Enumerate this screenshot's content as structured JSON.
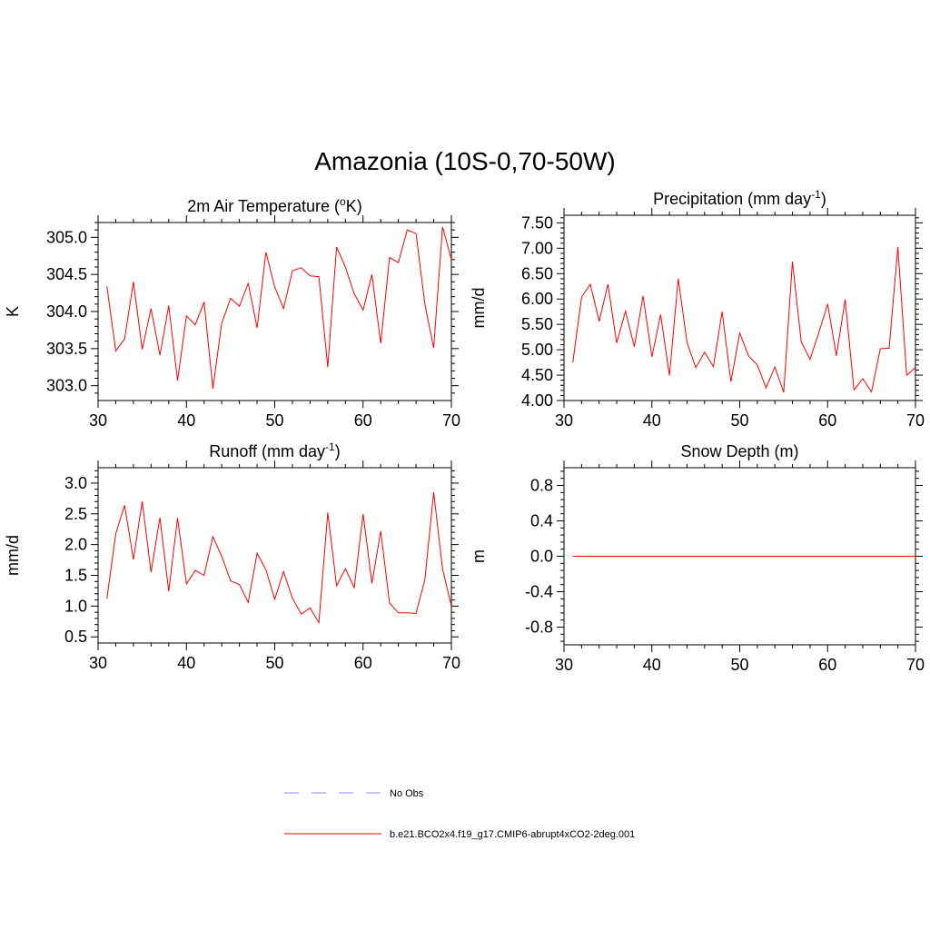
{
  "title": "Amazonia (10S-0,70-50W)",
  "legend": {
    "obs_label": "No Obs",
    "model_label": "b.e21.BCO2x4.f19_g17.CMIP6-abrupt4xCO2-2deg.001",
    "obs_color": "#8c8cff",
    "model_color": "#ff0000"
  },
  "chart_data": [
    {
      "type": "line",
      "title": "2m Air Temperature (",
      "title_sup": "o",
      "title_suffix": "K)",
      "ylabel": "K",
      "xlim": [
        30,
        70
      ],
      "ylim": [
        302.8,
        305.2
      ],
      "xticks": [
        30,
        40,
        50,
        60,
        70
      ],
      "yticks": [
        303.0,
        303.5,
        304.0,
        304.5,
        305.0
      ],
      "ytick_labels": [
        "303.0",
        "303.5",
        "304.0",
        "304.5",
        "305.0"
      ],
      "x": [
        31,
        32,
        33,
        34,
        35,
        36,
        37,
        38,
        39,
        40,
        41,
        42,
        43,
        44,
        45,
        46,
        47,
        48,
        49,
        50,
        51,
        52,
        53,
        54,
        55,
        56,
        57,
        58,
        59,
        60,
        61,
        62,
        63,
        64,
        65,
        66,
        67,
        68,
        69,
        70
      ],
      "series": [
        {
          "name": "b.e21.BCO2x4.f19_g17.CMIP6-abrupt4xCO2-2deg.001",
          "values": [
            304.34,
            303.47,
            303.63,
            304.4,
            303.49,
            304.04,
            303.41,
            304.08,
            303.07,
            303.94,
            303.82,
            304.13,
            302.96,
            303.84,
            304.18,
            304.07,
            304.38,
            303.78,
            304.8,
            304.33,
            304.04,
            304.55,
            304.59,
            304.48,
            304.47,
            303.25,
            304.87,
            304.6,
            304.24,
            304.02,
            304.5,
            303.57,
            304.73,
            304.66,
            305.1,
            305.05,
            304.1,
            303.51,
            305.14,
            304.7
          ]
        }
      ]
    },
    {
      "type": "line",
      "title": "Precipitation (mm day",
      "title_sup": "-1",
      "title_suffix": ")",
      "ylabel": "mm/d",
      "xlim": [
        30,
        70
      ],
      "ylim": [
        4.0,
        7.65
      ],
      "xticks": [
        30,
        40,
        50,
        60,
        70
      ],
      "yticks": [
        4.0,
        4.5,
        5.0,
        5.5,
        6.0,
        6.5,
        7.0,
        7.5
      ],
      "ytick_labels": [
        "4.00",
        "4.50",
        "5.00",
        "5.50",
        "6.00",
        "6.50",
        "7.00",
        "7.50"
      ],
      "x": [
        31,
        32,
        33,
        34,
        35,
        36,
        37,
        38,
        39,
        40,
        41,
        42,
        43,
        44,
        45,
        46,
        47,
        48,
        49,
        50,
        51,
        52,
        53,
        54,
        55,
        56,
        57,
        58,
        59,
        60,
        61,
        62,
        63,
        64,
        65,
        66,
        67,
        68,
        69,
        70
      ],
      "series": [
        {
          "name": "b.e21.BCO2x4.f19_g17.CMIP6-abrupt4xCO2-2deg.001",
          "values": [
            4.75,
            6.04,
            6.29,
            5.56,
            6.29,
            5.13,
            5.76,
            5.06,
            6.06,
            4.86,
            5.69,
            4.49,
            6.4,
            5.14,
            4.65,
            4.95,
            4.67,
            5.75,
            4.37,
            5.33,
            4.88,
            4.7,
            4.25,
            4.66,
            4.16,
            6.74,
            5.16,
            4.81,
            5.34,
            5.9,
            4.88,
            5.99,
            4.21,
            4.43,
            4.17,
            5.02,
            5.03,
            7.02,
            4.5,
            4.65
          ]
        }
      ]
    },
    {
      "type": "line",
      "title": "Runoff (mm day",
      "title_sup": "-1",
      "title_suffix": ")",
      "ylabel": "mm/d",
      "xlim": [
        30,
        70
      ],
      "ylim": [
        0.4,
        3.25
      ],
      "xticks": [
        30,
        40,
        50,
        60,
        70
      ],
      "yticks": [
        0.5,
        1.0,
        1.5,
        2.0,
        2.5,
        3.0
      ],
      "ytick_labels": [
        "0.5",
        "1.0",
        "1.5",
        "2.0",
        "2.5",
        "3.0"
      ],
      "x": [
        31,
        32,
        33,
        34,
        35,
        36,
        37,
        38,
        39,
        40,
        41,
        42,
        43,
        44,
        45,
        46,
        47,
        48,
        49,
        50,
        51,
        52,
        53,
        54,
        55,
        56,
        57,
        58,
        59,
        60,
        61,
        62,
        63,
        64,
        65,
        66,
        67,
        68,
        69,
        70
      ],
      "series": [
        {
          "name": "b.e21.BCO2x4.f19_g17.CMIP6-abrupt4xCO2-2deg.001",
          "values": [
            1.12,
            2.18,
            2.64,
            1.76,
            2.7,
            1.55,
            2.44,
            1.24,
            2.43,
            1.36,
            1.58,
            1.5,
            2.13,
            1.81,
            1.41,
            1.35,
            1.06,
            1.86,
            1.59,
            1.11,
            1.56,
            1.13,
            0.87,
            0.97,
            0.73,
            2.52,
            1.33,
            1.61,
            1.3,
            2.5,
            1.37,
            2.22,
            1.05,
            0.89,
            0.89,
            0.88,
            1.43,
            2.85,
            1.6,
            1.0
          ]
        }
      ]
    },
    {
      "type": "line",
      "title": "Snow Depth (m)",
      "title_sup": "",
      "title_suffix": "",
      "ylabel": "m",
      "xlim": [
        30,
        70
      ],
      "ylim": [
        -1.0,
        1.0
      ],
      "xticks": [
        30,
        40,
        50,
        60,
        70
      ],
      "yticks": [
        -0.8,
        -0.4,
        0.0,
        0.4,
        0.8
      ],
      "ytick_labels": [
        "-0.8",
        "-0.4",
        "0.0",
        "0.4",
        "0.8"
      ],
      "x": [
        31,
        70
      ],
      "series": [
        {
          "name": "b.e21.BCO2x4.f19_g17.CMIP6-abrupt4xCO2-2deg.001",
          "values": [
            0.0,
            0.0
          ]
        }
      ]
    }
  ]
}
